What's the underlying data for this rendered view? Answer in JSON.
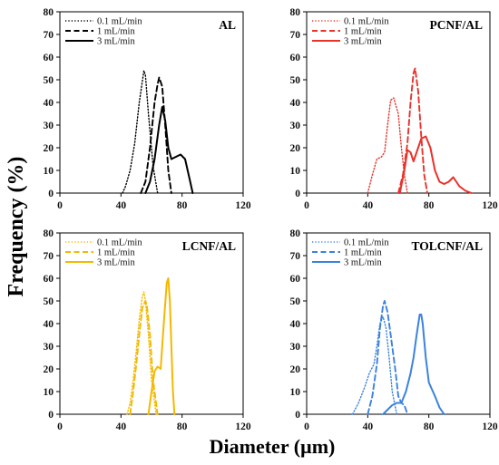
{
  "figure": {
    "ylabel": "Frequency (%)",
    "xlabel": "Diameter (µm)"
  },
  "chart_data": [
    {
      "type": "line",
      "title": "AL",
      "legend_placement": "top-left",
      "color": "#000000",
      "xlim": [
        0,
        120
      ],
      "ylim": [
        0,
        80
      ],
      "xticks": [
        0,
        40,
        80,
        120
      ],
      "yticks": [
        0,
        10,
        20,
        30,
        40,
        50,
        60,
        70,
        80
      ],
      "series": [
        {
          "name": "0.1 mL/min",
          "dash": "dotted",
          "x": [
            41,
            43,
            46,
            49,
            52,
            55,
            56,
            58,
            61,
            64
          ],
          "y": [
            0,
            3,
            10,
            22,
            40,
            54,
            52,
            35,
            12,
            0
          ]
        },
        {
          "name": "1 mL/min",
          "dash": "dashed",
          "x": [
            53,
            56,
            59,
            62,
            64,
            65,
            67,
            69,
            71,
            73
          ],
          "y": [
            0,
            5,
            20,
            40,
            48,
            51,
            47,
            30,
            10,
            0
          ]
        },
        {
          "name": "3 mL/min",
          "dash": "solid",
          "x": [
            56,
            59,
            62,
            65,
            67,
            69,
            71,
            73,
            76,
            79,
            82,
            85,
            87
          ],
          "y": [
            0,
            5,
            15,
            30,
            38,
            32,
            20,
            15,
            16,
            17,
            15,
            6,
            0
          ]
        }
      ]
    },
    {
      "type": "line",
      "title": "PCNF/AL",
      "legend_placement": "top-left",
      "color": "#e8322b",
      "xlim": [
        0,
        120
      ],
      "ylim": [
        0,
        80
      ],
      "xticks": [
        0,
        40,
        80,
        120
      ],
      "yticks": [
        0,
        10,
        20,
        30,
        40,
        50,
        60,
        70,
        80
      ],
      "series": [
        {
          "name": "0.1 mL/min",
          "dash": "dotted",
          "x": [
            40,
            43,
            46,
            49,
            51,
            53,
            55,
            57,
            60,
            62,
            64,
            66
          ],
          "y": [
            0,
            8,
            15,
            16,
            18,
            30,
            41,
            42,
            35,
            20,
            8,
            0
          ]
        },
        {
          "name": "1 mL/min",
          "dash": "dashed",
          "x": [
            60,
            63,
            66,
            68,
            70,
            71,
            73,
            75,
            77,
            79
          ],
          "y": [
            0,
            8,
            22,
            40,
            53,
            55,
            45,
            25,
            8,
            0
          ]
        },
        {
          "name": "3 mL/min",
          "dash": "solid",
          "x": [
            61,
            64,
            66,
            68,
            70,
            72,
            75,
            78,
            81,
            84,
            87,
            90,
            93,
            96,
            100,
            104,
            108
          ],
          "y": [
            0,
            10,
            19,
            18,
            14,
            18,
            24,
            25,
            20,
            10,
            5,
            4,
            5,
            7,
            3,
            1,
            0
          ]
        }
      ]
    },
    {
      "type": "line",
      "title": "LCNF/AL",
      "legend_placement": "top-left",
      "color": "#f5b800",
      "xlim": [
        0,
        120
      ],
      "ylim": [
        0,
        80
      ],
      "xticks": [
        0,
        40,
        80,
        120
      ],
      "yticks": [
        0,
        10,
        20,
        30,
        40,
        50,
        60,
        70,
        80
      ],
      "series": [
        {
          "name": "0.1 mL/min",
          "dash": "dotted",
          "x": [
            44,
            46,
            48,
            50,
            52,
            54,
            55,
            56,
            58,
            60,
            63
          ],
          "y": [
            0,
            5,
            15,
            28,
            42,
            52,
            54,
            50,
            35,
            15,
            0
          ]
        },
        {
          "name": "1 mL/min",
          "dash": "dashed",
          "x": [
            46,
            48,
            50,
            52,
            54,
            56,
            57,
            59,
            61,
            64
          ],
          "y": [
            0,
            10,
            22,
            35,
            47,
            50,
            48,
            35,
            15,
            0
          ]
        },
        {
          "name": "3 mL/min",
          "dash": "solid",
          "x": [
            58,
            60,
            62,
            64,
            66,
            68,
            70,
            71,
            72,
            73,
            74,
            75
          ],
          "y": [
            0,
            10,
            19,
            21,
            20,
            40,
            58,
            60,
            50,
            30,
            10,
            0
          ]
        }
      ]
    },
    {
      "type": "line",
      "title": "TOLCNF/AL",
      "legend_placement": "top-left",
      "color": "#3b82e0",
      "xlim": [
        0,
        120
      ],
      "ylim": [
        0,
        80
      ],
      "xticks": [
        0,
        40,
        80,
        120
      ],
      "yticks": [
        0,
        10,
        20,
        30,
        40,
        50,
        60,
        70,
        80
      ],
      "series": [
        {
          "name": "0.1 mL/min",
          "dash": "dotted",
          "x": [
            30,
            34,
            38,
            41,
            44,
            46,
            48,
            50,
            52,
            54,
            56,
            59
          ],
          "y": [
            0,
            5,
            12,
            18,
            22,
            30,
            40,
            43,
            38,
            25,
            10,
            0
          ]
        },
        {
          "name": "1 mL/min",
          "dash": "dashed",
          "x": [
            40,
            43,
            46,
            48,
            50,
            51,
            53,
            55,
            58,
            60,
            62,
            64,
            66
          ],
          "y": [
            0,
            8,
            22,
            38,
            48,
            50,
            45,
            35,
            20,
            8,
            5,
            4,
            0
          ]
        },
        {
          "name": "3 mL/min",
          "dash": "solid",
          "x": [
            50,
            53,
            56,
            59,
            62,
            65,
            68,
            70,
            72,
            74,
            75,
            76,
            78,
            80,
            84,
            87,
            90
          ],
          "y": [
            0,
            2,
            4,
            5,
            5,
            10,
            18,
            25,
            35,
            44,
            44,
            40,
            25,
            14,
            8,
            3,
            0
          ]
        }
      ]
    }
  ]
}
